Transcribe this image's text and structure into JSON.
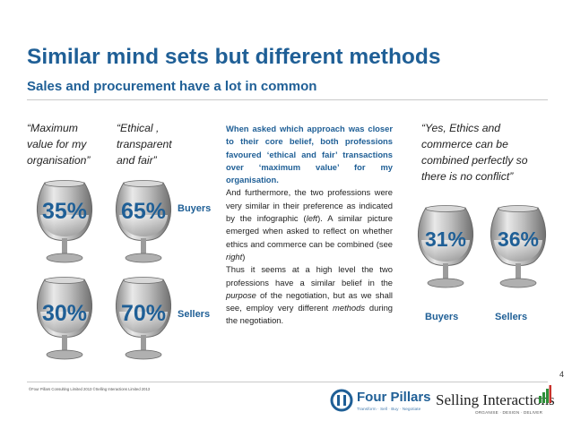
{
  "header": {
    "title": "Similar mind sets but different methods",
    "subtitle": "Sales and procurement have a lot in common"
  },
  "quotes": {
    "maximum": [
      "“Maximum",
      "value for my",
      "organisation”"
    ],
    "ethical": [
      "“Ethical ,",
      "transparent",
      "and fair”"
    ],
    "yes_ethics": [
      "“Yes, Ethics and",
      "commerce can be",
      "combined perfectly so",
      "there is no conflict”"
    ]
  },
  "left_glasses": {
    "buyers": {
      "label": "Buyers",
      "maximum_value": "35%",
      "ethical": "65%"
    },
    "sellers": {
      "label": "Sellers",
      "maximum_value": "30%",
      "ethical": "70%"
    }
  },
  "right_glasses": {
    "buyers": {
      "value": "31%",
      "label": "Buyers"
    },
    "sellers": {
      "value": "36%",
      "label": "Sellers"
    }
  },
  "body_text": {
    "lead": "When asked which approach was closer to their core belief, both professions favoured ‘ethical and fair’ transactions over ‘maximum value’ for my organisation.",
    "para2_pre": "And furthermore, the two professions were very similar in their preference as indicated by the infographic (",
    "para2_left": "left",
    "para2_mid": "). A similar picture emerged when asked to reflect on whether ethics and commerce can be combined (see ",
    "para2_right": "right",
    "para2_post": ")",
    "para3_pre": "Thus it seems at a high level the two professions have a similar belief in the ",
    "para3_purpose": "purpose",
    "para3_mid": " of the negotiation, but as we shall see, employ very different ",
    "para3_methods": "methods",
    "para3_post": " during the negotiation."
  },
  "page_number": "4",
  "footer": {
    "copyright": "©Four Pillars Consulting Limited 2013 ©Selling Interactions Limited 2013",
    "four_pillars_name": "Four Pillars",
    "four_pillars_tagline": "Transform · Sell · Buy · Negotiate",
    "selling_interactions_name": "Selling Interactions",
    "selling_interactions_tagline": "ORGANISE · DESIGN · DELIVER"
  },
  "colors": {
    "accent": "#1f5f96",
    "text": "#222222",
    "rule": "#c9c9c9"
  },
  "icons": {
    "glass": "brandy-glass-icon",
    "logo_left": "four-pillars-logo-icon",
    "logo_right": "bar-chart-logo-icon"
  }
}
